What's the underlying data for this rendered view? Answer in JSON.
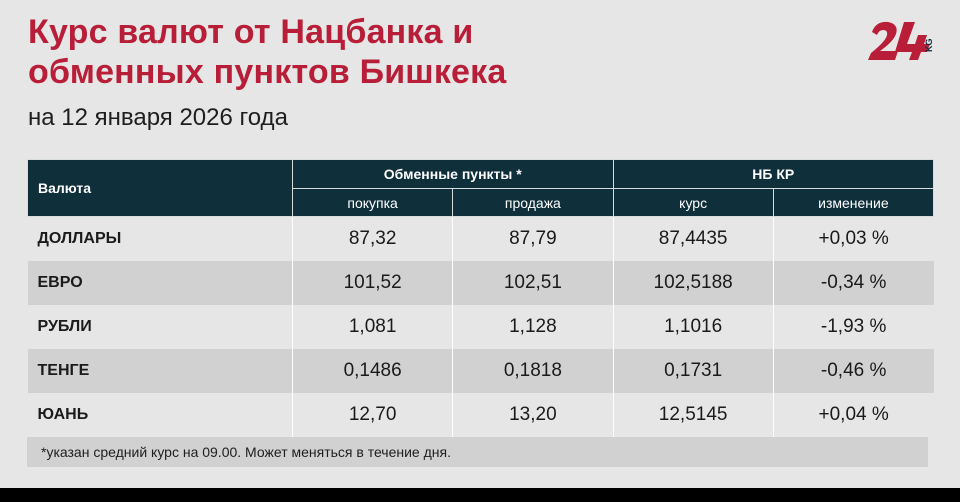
{
  "title_line1": "Курс валют от Нацбанка и",
  "title_line2": "обменных пунктов Бишкека",
  "subtitle": "на 12 января 2026 года",
  "logo_text": "24 KG",
  "colors": {
    "accent": "#b81e37",
    "header_bg": "#0f2f3b",
    "row_light": "#e6e6e6",
    "row_dark": "#d1d1d1"
  },
  "chart_data": {
    "type": "table",
    "group_headers": {
      "currency": "Валюта",
      "exchange": "Обменные пункты *",
      "nbkr": "НБ КР"
    },
    "columns": [
      "покупка",
      "продажа",
      "курс",
      "изменение"
    ],
    "rows": [
      {
        "currency": "ДОЛЛАРЫ",
        "buy": "87,32",
        "sell": "87,79",
        "rate": "87,4435",
        "change": "+0,03 %"
      },
      {
        "currency": "ЕВРО",
        "buy": "101,52",
        "sell": "102,51",
        "rate": "102,5188",
        "change": "-0,34 %"
      },
      {
        "currency": "РУБЛИ",
        "buy": "1,081",
        "sell": "1,128",
        "rate": "1,1016",
        "change": "-1,93 %"
      },
      {
        "currency": "ТЕНГЕ",
        "buy": "0,1486",
        "sell": "0,1818",
        "rate": "0,1731",
        "change": "-0,46 %"
      },
      {
        "currency": "ЮАНЬ",
        "buy": "12,70",
        "sell": "13,20",
        "rate": "12,5145",
        "change": "+0,04 %"
      }
    ]
  },
  "footnote": "*указан средний курс на 09.00. Может меняться в течение дня."
}
